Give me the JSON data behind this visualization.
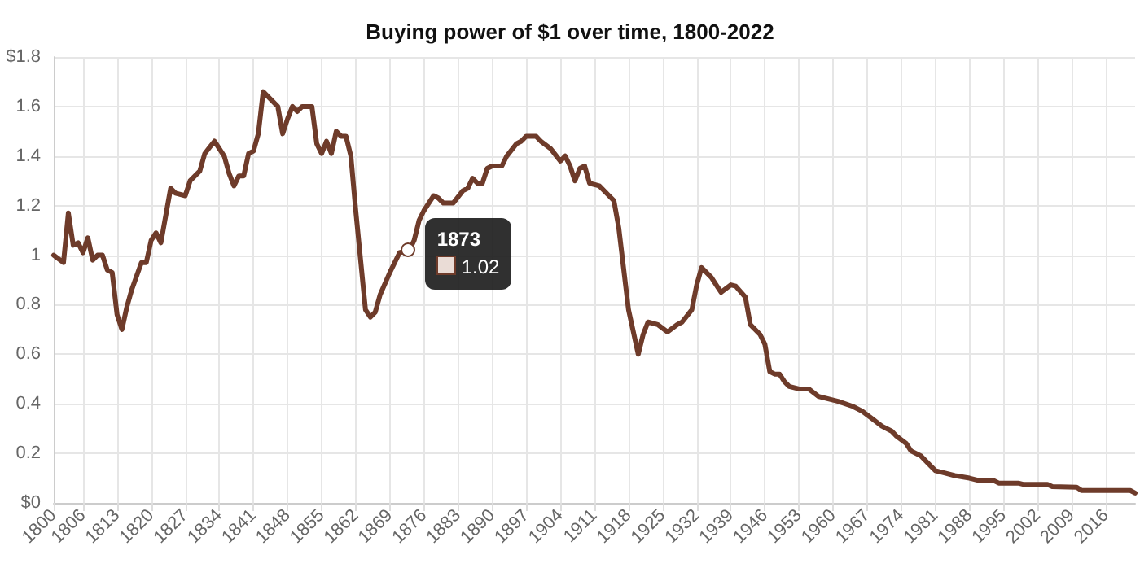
{
  "chart_data": {
    "type": "line",
    "title": "Buying power of $1 over time, 1800-2022",
    "color": "#6e3b2a",
    "marker": "none",
    "line_style": "solid",
    "grid": true,
    "x": [
      1800,
      1802,
      1803,
      1804,
      1805,
      1806,
      1807,
      1808,
      1809,
      1810,
      1811,
      1812,
      1813,
      1814,
      1815,
      1816,
      1818,
      1819,
      1820,
      1821,
      1822,
      1824,
      1825,
      1827,
      1828,
      1830,
      1831,
      1833,
      1835,
      1836,
      1837,
      1838,
      1839,
      1840,
      1841,
      1842,
      1843,
      1846,
      1847,
      1848,
      1849,
      1850,
      1851,
      1853,
      1854,
      1855,
      1856,
      1857,
      1858,
      1859,
      1860,
      1861,
      1862,
      1864,
      1865,
      1866,
      1867,
      1869,
      1871,
      1873,
      1874,
      1875,
      1876,
      1878,
      1879,
      1880,
      1882,
      1884,
      1885,
      1886,
      1887,
      1888,
      1889,
      1890,
      1892,
      1893,
      1895,
      1896,
      1897,
      1899,
      1900,
      1902,
      1904,
      1905,
      1906,
      1907,
      1908,
      1909,
      1910,
      1912,
      1914,
      1915,
      1916,
      1918,
      1920,
      1921,
      1922,
      1924,
      1926,
      1928,
      1929,
      1931,
      1932,
      1933,
      1935,
      1936,
      1937,
      1939,
      1940,
      1942,
      1943,
      1945,
      1946,
      1947,
      1948,
      1949,
      1950,
      1951,
      1953,
      1955,
      1957,
      1959,
      1961,
      1964,
      1966,
      1968,
      1970,
      1972,
      1973,
      1975,
      1976,
      1978,
      1980,
      1981,
      1983,
      1985,
      1988,
      1990,
      1993,
      1994,
      1998,
      1999,
      2004,
      2005,
      2010,
      2011,
      2021,
      2022
    ],
    "values": [
      1.0,
      0.97,
      1.17,
      1.04,
      1.05,
      1.01,
      1.07,
      0.98,
      1.0,
      1.0,
      0.94,
      0.93,
      0.76,
      0.7,
      0.79,
      0.86,
      0.97,
      0.97,
      1.06,
      1.09,
      1.05,
      1.27,
      1.25,
      1.24,
      1.3,
      1.34,
      1.41,
      1.46,
      1.4,
      1.33,
      1.28,
      1.32,
      1.32,
      1.41,
      1.42,
      1.49,
      1.66,
      1.6,
      1.49,
      1.55,
      1.6,
      1.58,
      1.6,
      1.6,
      1.45,
      1.41,
      1.46,
      1.41,
      1.5,
      1.48,
      1.48,
      1.4,
      1.18,
      0.78,
      0.75,
      0.77,
      0.84,
      0.93,
      1.01,
      1.02,
      1.06,
      1.14,
      1.18,
      1.24,
      1.23,
      1.21,
      1.21,
      1.26,
      1.27,
      1.31,
      1.29,
      1.29,
      1.35,
      1.36,
      1.36,
      1.4,
      1.45,
      1.46,
      1.48,
      1.48,
      1.46,
      1.43,
      1.38,
      1.4,
      1.36,
      1.3,
      1.35,
      1.36,
      1.29,
      1.28,
      1.24,
      1.22,
      1.11,
      0.78,
      0.6,
      0.68,
      0.73,
      0.72,
      0.69,
      0.72,
      0.73,
      0.78,
      0.88,
      0.95,
      0.91,
      0.88,
      0.85,
      0.88,
      0.875,
      0.83,
      0.72,
      0.68,
      0.64,
      0.53,
      0.52,
      0.52,
      0.49,
      0.47,
      0.46,
      0.46,
      0.43,
      0.42,
      0.41,
      0.39,
      0.37,
      0.34,
      0.31,
      0.29,
      0.27,
      0.24,
      0.21,
      0.19,
      0.15,
      0.13,
      0.12,
      0.11,
      0.1,
      0.09,
      0.09,
      0.08,
      0.08,
      0.075,
      0.075,
      0.066,
      0.063,
      0.05,
      0.05,
      0.04
    ],
    "xlim": [
      1800,
      2022
    ],
    "xticks": [
      1800,
      1806,
      1813,
      1820,
      1827,
      1834,
      1841,
      1848,
      1855,
      1862,
      1869,
      1876,
      1883,
      1890,
      1897,
      1904,
      1911,
      1918,
      1925,
      1932,
      1939,
      1946,
      1953,
      1960,
      1967,
      1974,
      1981,
      1988,
      1995,
      2002,
      2009,
      2016
    ],
    "ylim": [
      0,
      1.8
    ],
    "yticks": [
      {
        "value": 0,
        "label": "$0"
      },
      0.2,
      0.4,
      0.6,
      0.8,
      1,
      1.2,
      1.4,
      1.6,
      {
        "value": 1.8,
        "label": "$1.8"
      }
    ],
    "annotations": [
      {
        "text": "1873",
        "x": 1873,
        "y": 1.02
      },
      {
        "text": "1.02",
        "x": 1873,
        "y": 1.02
      }
    ]
  }
}
